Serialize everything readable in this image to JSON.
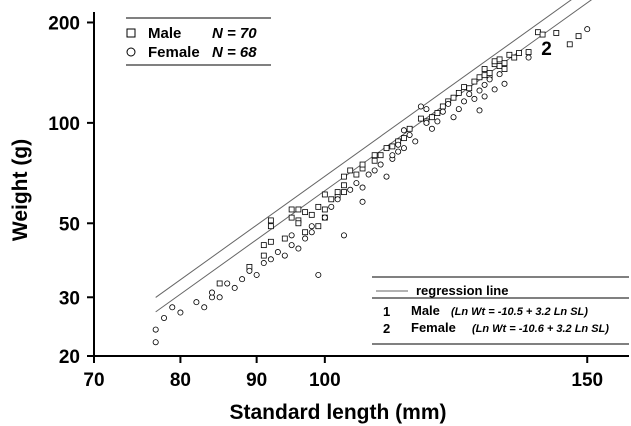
{
  "chart_data": {
    "type": "scatter",
    "xlabel": "Standard length (mm)",
    "ylabel": "Weight (g)",
    "x_scale": "log",
    "y_scale": "log",
    "xlim": [
      70,
      160
    ],
    "ylim": [
      20,
      215
    ],
    "xticks": [
      70,
      80,
      90,
      100,
      150
    ],
    "yticks": [
      20,
      30,
      50,
      100,
      200
    ],
    "legend": {
      "placement": "top-left",
      "entries": [
        {
          "marker": "square",
          "label": "Male",
          "n_label": "N = 70"
        },
        {
          "marker": "circle",
          "label": "Female",
          "n_label": "N = 68"
        }
      ]
    },
    "regression_legend": {
      "placement": "bottom-right",
      "title": "regression line",
      "entries": [
        {
          "id": "1",
          "label": "Male",
          "equation": "(Ln Wt = -10.5 + 3.2 Ln SL)"
        },
        {
          "id": "2",
          "label": "Female",
          "equation": "(Ln Wt = -10.6 + 3.2 Ln SL)"
        }
      ]
    },
    "lines": [
      {
        "id": "1",
        "label": "1",
        "intercept_ln": -10.5,
        "slope": 3.2,
        "x_range": [
          77,
          155
        ],
        "label_at": 155
      },
      {
        "id": "2",
        "label": "2",
        "intercept_ln": -10.6,
        "slope": 3.2,
        "x_range": [
          77,
          155
        ],
        "label_at": 140
      }
    ],
    "series": [
      {
        "name": "Male",
        "marker": "square",
        "points": [
          [
            85,
            33
          ],
          [
            89,
            37
          ],
          [
            91,
            40
          ],
          [
            91,
            43
          ],
          [
            92,
            44
          ],
          [
            92,
            49
          ],
          [
            92,
            51
          ],
          [
            94,
            45
          ],
          [
            95,
            52
          ],
          [
            95,
            55
          ],
          [
            96,
            51
          ],
          [
            96,
            50
          ],
          [
            96,
            55
          ],
          [
            97,
            54
          ],
          [
            97,
            47
          ],
          [
            98,
            53
          ],
          [
            99,
            56
          ],
          [
            99,
            49
          ],
          [
            100,
            52
          ],
          [
            100,
            55
          ],
          [
            100,
            61
          ],
          [
            101,
            59
          ],
          [
            102,
            60
          ],
          [
            102,
            62
          ],
          [
            103,
            62
          ],
          [
            103,
            65
          ],
          [
            103,
            69
          ],
          [
            104,
            72
          ],
          [
            105,
            70
          ],
          [
            106,
            73
          ],
          [
            106,
            75
          ],
          [
            108,
            77
          ],
          [
            108,
            80
          ],
          [
            109,
            80
          ],
          [
            110,
            84
          ],
          [
            111,
            85
          ],
          [
            112,
            88
          ],
          [
            113,
            90
          ],
          [
            114,
            96
          ],
          [
            116,
            103
          ],
          [
            117,
            101
          ],
          [
            118,
            104
          ],
          [
            119,
            107
          ],
          [
            120,
            112
          ],
          [
            121,
            116
          ],
          [
            122,
            119
          ],
          [
            123,
            123
          ],
          [
            124,
            128
          ],
          [
            125,
            127
          ],
          [
            126,
            133
          ],
          [
            127,
            137
          ],
          [
            128,
            139
          ],
          [
            128,
            145
          ],
          [
            129,
            137
          ],
          [
            129,
            141
          ],
          [
            130,
            150
          ],
          [
            130,
            153
          ],
          [
            131,
            148
          ],
          [
            131,
            155
          ],
          [
            132,
            145
          ],
          [
            132,
            151
          ],
          [
            133,
            160
          ],
          [
            134,
            157
          ],
          [
            135,
            162
          ],
          [
            137,
            163
          ],
          [
            139,
            187
          ],
          [
            140,
            184
          ],
          [
            143,
            186
          ],
          [
            146,
            172
          ],
          [
            148,
            182
          ]
        ]
      },
      {
        "name": "Female",
        "marker": "circle",
        "points": [
          [
            77,
            24
          ],
          [
            77,
            22
          ],
          [
            78,
            26
          ],
          [
            79,
            28
          ],
          [
            80,
            27
          ],
          [
            82,
            29
          ],
          [
            83,
            28
          ],
          [
            84,
            30
          ],
          [
            84,
            31
          ],
          [
            85,
            30
          ],
          [
            86,
            33
          ],
          [
            87,
            32
          ],
          [
            88,
            34
          ],
          [
            89,
            36
          ],
          [
            90,
            35
          ],
          [
            91,
            38
          ],
          [
            92,
            39
          ],
          [
            93,
            41
          ],
          [
            94,
            40
          ],
          [
            95,
            43
          ],
          [
            95,
            46
          ],
          [
            96,
            42
          ],
          [
            97,
            45
          ],
          [
            98,
            49
          ],
          [
            98,
            47
          ],
          [
            99,
            35
          ],
          [
            100,
            52
          ],
          [
            101,
            56
          ],
          [
            102,
            59
          ],
          [
            103,
            46
          ],
          [
            104,
            63
          ],
          [
            105,
            66
          ],
          [
            106,
            64
          ],
          [
            106,
            58
          ],
          [
            107,
            70
          ],
          [
            108,
            72
          ],
          [
            109,
            75
          ],
          [
            110,
            69
          ],
          [
            111,
            78
          ],
          [
            111,
            80
          ],
          [
            112,
            82
          ],
          [
            112,
            86
          ],
          [
            113,
            84
          ],
          [
            113,
            95
          ],
          [
            114,
            92
          ],
          [
            115,
            88
          ],
          [
            116,
            112
          ],
          [
            117,
            100
          ],
          [
            117,
            110
          ],
          [
            118,
            96
          ],
          [
            119,
            101
          ],
          [
            120,
            108
          ],
          [
            121,
            114
          ],
          [
            122,
            104
          ],
          [
            123,
            110
          ],
          [
            124,
            116
          ],
          [
            125,
            122
          ],
          [
            126,
            118
          ],
          [
            127,
            109
          ],
          [
            127,
            125
          ],
          [
            128,
            120
          ],
          [
            128,
            130
          ],
          [
            129,
            135
          ],
          [
            130,
            126
          ],
          [
            131,
            140
          ],
          [
            132,
            131
          ],
          [
            137,
            157
          ],
          [
            150,
            191
          ]
        ]
      }
    ]
  }
}
